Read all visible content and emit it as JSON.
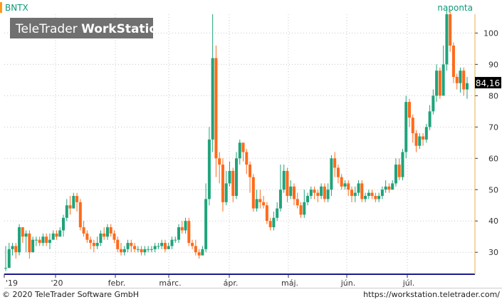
{
  "symbol": "BNTX",
  "watermark_light": "TeleTrader ",
  "watermark_bold": "WorkStation",
  "period_label": "naponta",
  "last_price_label": "84,16",
  "copyright": "© 2020 TeleTrader Software GmbH",
  "website": "https://workstation.teletrader.com/",
  "colors": {
    "up": "#1fa37a",
    "down": "#ff6a1a",
    "grid": "#c8c8c8",
    "axis": "#e6b04a",
    "symbol_text": "#0a9a78",
    "watermark_bg": "#707070",
    "price_tag_bg": "#000000"
  },
  "chart_data": {
    "type": "candlestick",
    "y_scale": "linear",
    "ylim": [
      23,
      106
    ],
    "y_ticks": [
      30,
      40,
      50,
      60,
      70,
      80,
      90,
      100
    ],
    "x_labels": [
      "'19",
      "'20",
      "febr.",
      "márc.",
      "ápr.",
      "máj.",
      "jún.",
      "júl."
    ],
    "grid": true,
    "last_price": 84.16,
    "candles": [
      [
        25,
        25,
        32,
        24
      ],
      [
        25,
        31,
        33,
        25
      ],
      [
        31,
        32,
        33,
        29
      ],
      [
        32,
        30,
        33,
        28
      ],
      [
        30,
        38,
        39,
        29
      ],
      [
        38,
        35,
        38,
        33
      ],
      [
        35,
        36,
        37,
        30
      ],
      [
        36,
        30,
        37,
        28
      ],
      [
        30,
        34,
        35,
        30
      ],
      [
        34,
        34,
        35,
        32
      ],
      [
        34,
        33,
        35,
        32
      ],
      [
        33,
        35,
        36,
        32
      ],
      [
        35,
        33,
        36,
        32
      ],
      [
        33,
        34,
        36,
        31
      ],
      [
        34,
        36,
        37,
        34
      ],
      [
        36,
        35,
        37,
        34
      ],
      [
        35,
        37,
        38,
        35
      ],
      [
        37,
        41,
        42,
        35
      ],
      [
        41,
        45,
        47,
        40
      ],
      [
        45,
        44,
        48,
        42
      ],
      [
        44,
        48,
        49,
        44
      ],
      [
        48,
        46,
        49,
        43
      ],
      [
        46,
        38,
        47,
        37
      ],
      [
        38,
        36,
        40,
        35
      ],
      [
        36,
        34,
        37,
        33
      ],
      [
        34,
        33,
        35,
        31
      ],
      [
        33,
        32,
        34,
        30
      ],
      [
        32,
        33,
        35,
        31
      ],
      [
        33,
        36,
        37,
        32
      ],
      [
        36,
        35,
        38,
        34
      ],
      [
        35,
        38,
        39,
        34
      ],
      [
        38,
        36,
        39,
        35
      ],
      [
        36,
        34,
        37,
        33
      ],
      [
        34,
        31,
        35,
        30
      ],
      [
        31,
        30,
        33,
        29
      ],
      [
        30,
        31,
        32,
        29
      ],
      [
        31,
        33,
        34,
        30
      ],
      [
        33,
        32,
        34,
        30
      ],
      [
        32,
        31,
        33,
        30
      ],
      [
        31,
        31,
        32,
        30
      ],
      [
        31,
        30,
        32,
        29
      ],
      [
        30,
        31,
        32,
        29
      ],
      [
        31,
        31,
        32,
        30
      ],
      [
        31,
        31,
        32,
        30
      ],
      [
        31,
        32,
        33,
        30
      ],
      [
        32,
        32,
        33,
        31
      ],
      [
        32,
        33,
        34,
        31
      ],
      [
        33,
        31,
        34,
        30
      ],
      [
        31,
        32,
        33,
        31
      ],
      [
        32,
        34,
        35,
        31
      ],
      [
        34,
        34,
        35,
        33
      ],
      [
        34,
        38,
        39,
        33
      ],
      [
        38,
        37,
        40,
        36
      ],
      [
        37,
        40,
        41,
        36
      ],
      [
        40,
        33,
        41,
        32
      ],
      [
        33,
        32,
        34,
        31
      ],
      [
        32,
        30,
        34,
        29
      ],
      [
        30,
        29,
        31,
        28
      ],
      [
        29,
        31,
        32,
        29
      ],
      [
        31,
        47,
        52,
        30
      ],
      [
        47,
        66,
        70,
        45
      ],
      [
        66,
        92,
        106,
        62
      ],
      [
        92,
        60,
        96,
        54
      ],
      [
        60,
        58,
        62,
        52
      ],
      [
        58,
        46,
        60,
        43
      ],
      [
        46,
        52,
        56,
        45
      ],
      [
        52,
        56,
        59,
        51
      ],
      [
        56,
        48,
        57,
        46
      ],
      [
        48,
        60,
        62,
        47
      ],
      [
        60,
        65,
        66,
        58
      ],
      [
        65,
        62,
        65,
        59
      ],
      [
        62,
        58,
        63,
        55
      ],
      [
        58,
        54,
        59,
        49
      ],
      [
        54,
        44,
        55,
        43
      ],
      [
        44,
        47,
        50,
        43
      ],
      [
        47,
        46,
        50,
        44
      ],
      [
        46,
        45,
        48,
        44
      ],
      [
        45,
        40,
        46,
        39
      ],
      [
        40,
        38,
        41,
        37
      ],
      [
        38,
        41,
        43,
        37
      ],
      [
        41,
        44,
        46,
        40
      ],
      [
        44,
        50,
        58,
        43
      ],
      [
        50,
        56,
        58,
        49
      ],
      [
        56,
        48,
        57,
        46
      ],
      [
        48,
        51,
        53,
        47
      ],
      [
        51,
        47,
        52,
        45
      ],
      [
        47,
        45,
        49,
        44
      ],
      [
        45,
        42,
        46,
        41
      ],
      [
        42,
        46,
        50,
        41
      ],
      [
        46,
        48,
        49,
        45
      ],
      [
        48,
        50,
        51,
        47
      ],
      [
        50,
        49,
        51,
        47
      ],
      [
        49,
        48,
        50,
        46
      ],
      [
        48,
        51,
        52,
        47
      ],
      [
        51,
        47,
        52,
        46
      ],
      [
        47,
        50,
        52,
        46
      ],
      [
        50,
        60,
        61,
        48
      ],
      [
        60,
        57,
        62,
        54
      ],
      [
        57,
        54,
        58,
        52
      ],
      [
        54,
        51,
        55,
        50
      ],
      [
        51,
        52,
        53,
        50
      ],
      [
        52,
        50,
        53,
        48
      ],
      [
        50,
        48,
        51,
        46
      ],
      [
        48,
        49,
        51,
        46
      ],
      [
        49,
        52,
        53,
        48
      ],
      [
        52,
        47,
        53,
        46
      ],
      [
        47,
        48,
        49,
        46
      ],
      [
        48,
        49,
        50,
        47
      ],
      [
        49,
        48,
        50,
        47
      ],
      [
        48,
        47,
        49,
        46
      ],
      [
        47,
        48,
        49,
        46
      ],
      [
        48,
        50,
        51,
        47
      ],
      [
        50,
        51,
        53,
        49
      ],
      [
        51,
        50,
        52,
        49
      ],
      [
        50,
        52,
        53,
        50
      ],
      [
        52,
        58,
        60,
        51
      ],
      [
        58,
        54,
        60,
        53
      ],
      [
        54,
        62,
        63,
        53
      ],
      [
        62,
        78,
        80,
        60
      ],
      [
        78,
        73,
        79,
        70
      ],
      [
        73,
        68,
        74,
        65
      ],
      [
        68,
        64,
        69,
        62
      ],
      [
        64,
        67,
        68,
        63
      ],
      [
        67,
        66,
        68,
        64
      ],
      [
        66,
        70,
        71,
        65
      ],
      [
        70,
        75,
        77,
        69
      ],
      [
        75,
        80,
        82,
        74
      ],
      [
        80,
        88,
        90,
        78
      ],
      [
        88,
        80,
        89,
        79
      ],
      [
        80,
        90,
        96,
        80
      ],
      [
        90,
        106,
        108,
        88
      ],
      [
        106,
        96,
        107,
        94
      ],
      [
        96,
        86,
        97,
        84
      ],
      [
        86,
        84,
        87,
        82
      ],
      [
        84,
        88,
        89,
        81
      ],
      [
        88,
        82,
        89,
        80
      ],
      [
        82,
        84,
        86,
        79
      ]
    ]
  }
}
